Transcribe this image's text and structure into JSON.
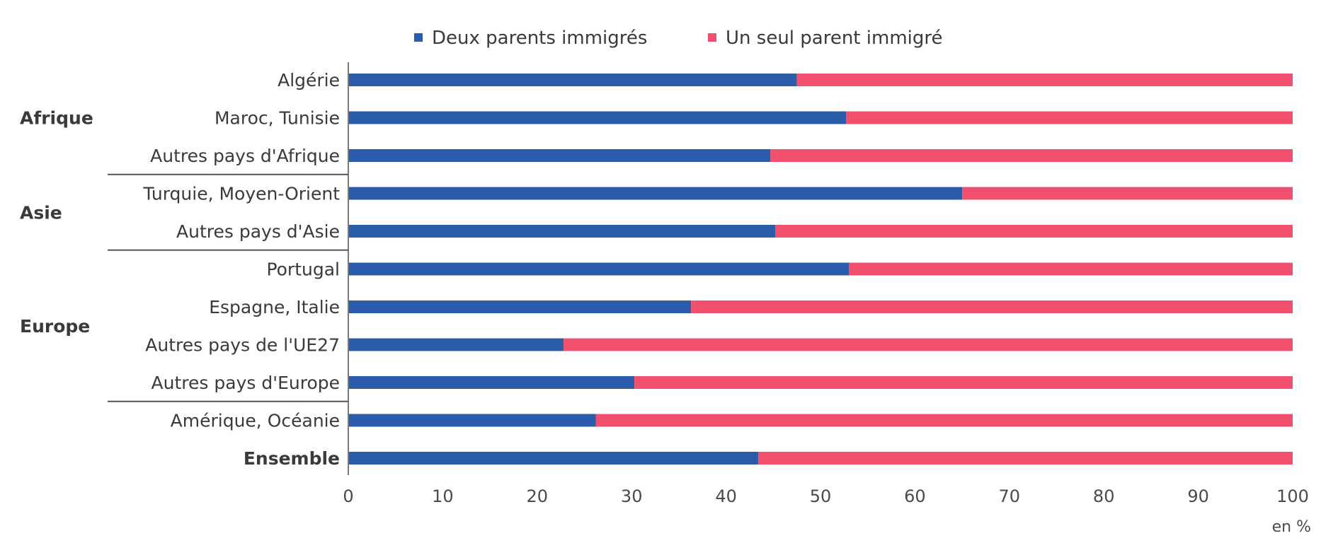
{
  "chart_data": {
    "type": "bar",
    "stacked": true,
    "orientation": "horizontal",
    "unit_label": "en %",
    "xlim": [
      0,
      100
    ],
    "x_ticks": [
      "0",
      "10",
      "20",
      "30",
      "40",
      "50",
      "60",
      "70",
      "80",
      "90",
      "100"
    ],
    "grid": false,
    "legend_position": "top",
    "categories": [
      "Algérie",
      "Maroc, Tunisie",
      "Autres pays d'Afrique",
      "Turquie, Moyen-Orient",
      "Autres pays d'Asie",
      "Portugal",
      "Espagne, Italie",
      "Autres pays de l'UE27",
      "Autres pays d'Europe",
      "Amérique, Océanie",
      "Ensemble"
    ],
    "bold_categories": [
      "Ensemble"
    ],
    "groups": [
      {
        "label": "Afrique",
        "categories": [
          "Algérie",
          "Maroc, Tunisie",
          "Autres pays d'Afrique"
        ]
      },
      {
        "label": "Asie",
        "categories": [
          "Turquie, Moyen-Orient",
          "Autres pays d'Asie"
        ]
      },
      {
        "label": "Europe",
        "categories": [
          "Portugal",
          "Espagne, Italie",
          "Autres pays de l'UE27",
          "Autres pays d'Europe"
        ]
      }
    ],
    "series": [
      {
        "name": "Deux parents immigrés",
        "color": "#2a5caa",
        "values": [
          47.5,
          52.7,
          44.7,
          65,
          45.2,
          53,
          36.3,
          22.8,
          30.3,
          26.2,
          43.4
        ]
      },
      {
        "name": "Un seul parent immigré",
        "color": "#f0506e",
        "values": [
          52.5,
          47.3,
          55.3,
          35,
          54.8,
          47,
          63.7,
          77.2,
          69.7,
          73.8,
          56.6
        ]
      }
    ]
  }
}
